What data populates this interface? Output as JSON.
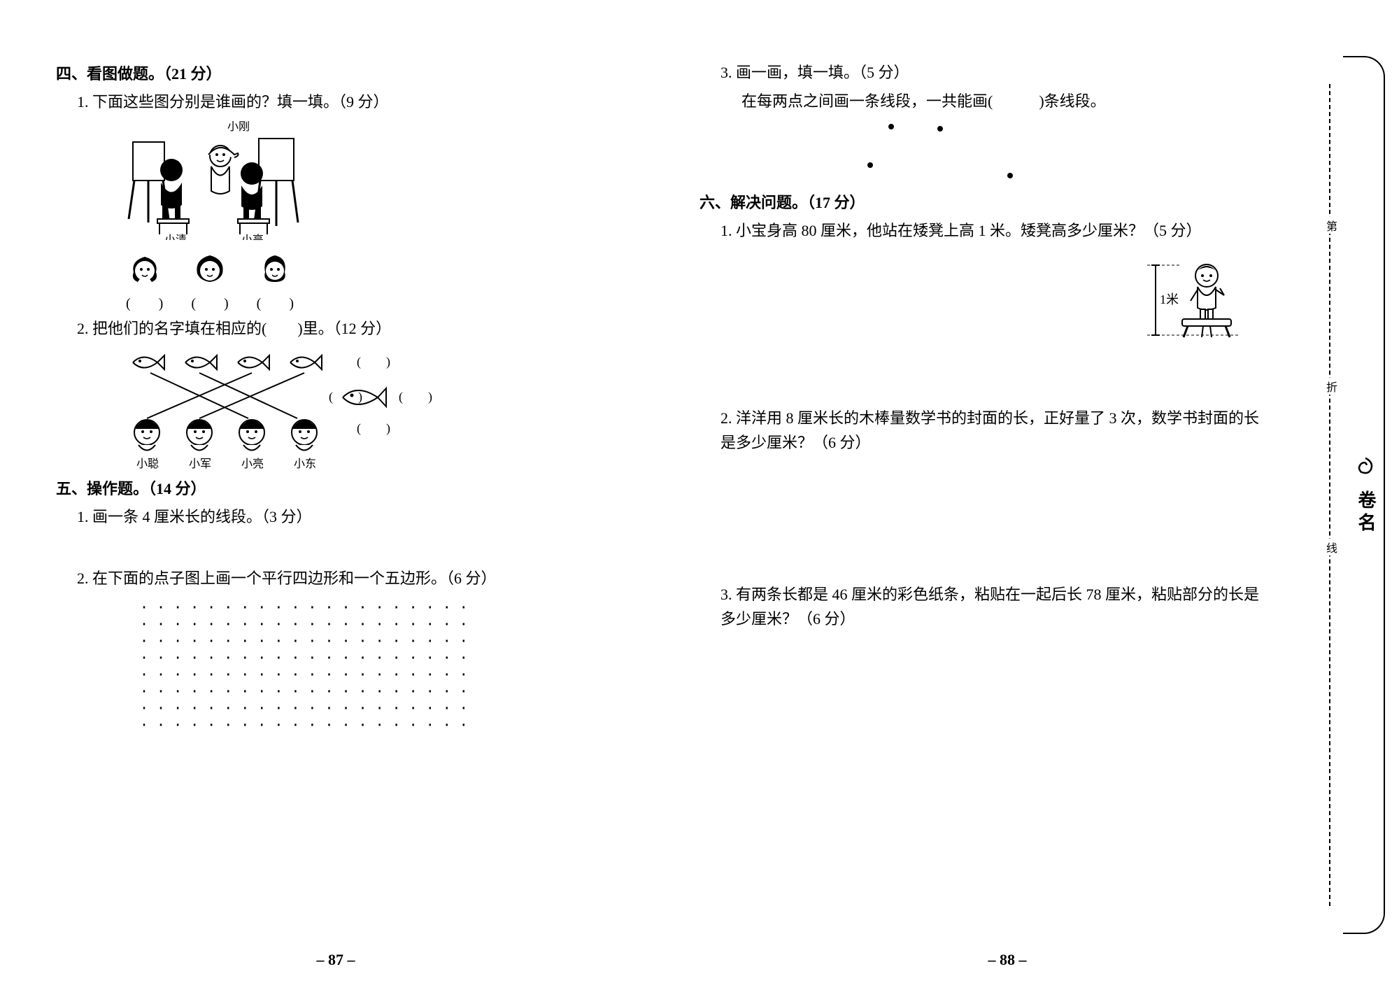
{
  "left": {
    "section4": {
      "title": "四、看图做题。（21 分）",
      "q1": "1. 下面这些图分别是谁画的？填一填。（9 分）",
      "scene_labels": {
        "a": "小刚",
        "b": "小清",
        "c": "小亮"
      },
      "blanks": [
        "(　　)",
        "(　　)",
        "(　　)"
      ],
      "q2": "2. 把他们的名字填在相应的(　　)里。（12 分）",
      "fish_names": [
        "小聪",
        "小军",
        "小亮",
        "小东"
      ],
      "fish_blanks": [
        "(　　)",
        "(　　)",
        "(　　)",
        "(　　)"
      ]
    },
    "section5": {
      "title": "五、操作题。（14 分）",
      "q1": "1. 画一条 4 厘米长的线段。（3 分）",
      "q2": "2. 在下面的点子图上画一个平行四边形和一个五边形。（6 分）",
      "dot_rows": 8,
      "dot_cols": 20,
      "dot_char": "·"
    },
    "page_num": "– 87 –"
  },
  "right": {
    "q3": {
      "line1": "3. 画一画，填一填。（5 分）",
      "line2": "在每两点之间画一条线段，一共能画(　　　)条线段。"
    },
    "section6": {
      "title": "六、解决问题。（17 分）",
      "q1": "1. 小宝身高 80 厘米，他站在矮凳上高 1 米。矮凳高多少厘米？（5 分）",
      "stool_label": "1米",
      "q2": "2. 洋洋用 8 厘米长的木棒量数学书的封面的长，正好量了 3 次，数学书封面的长是多少厘米？（6 分）",
      "q3": "3. 有两条长都是 46 厘米的彩色纸条，粘贴在一起后长 78 厘米，粘贴部分的长是多少厘米？（6 分）"
    },
    "page_num": "– 88 –"
  },
  "side": {
    "label": "卷名"
  },
  "dashed": {
    "a": "第",
    "b": "折",
    "c": "线"
  },
  "colors": {
    "text": "#000000",
    "bg": "#ffffff"
  }
}
